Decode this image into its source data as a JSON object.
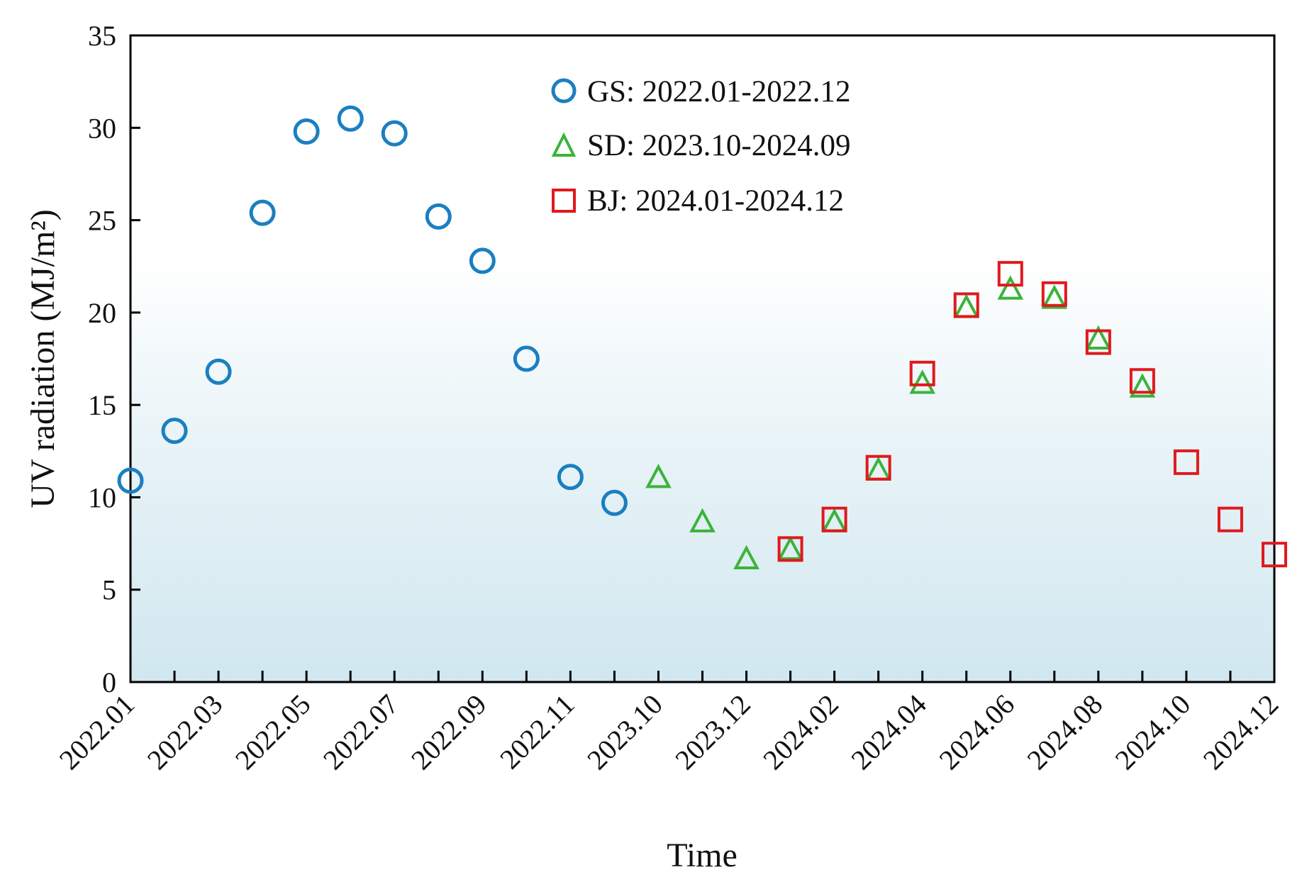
{
  "chart_data": {
    "type": "scatter",
    "title": "",
    "xlabel": "Time",
    "ylabel": "UV radiation (MJ/m²)",
    "ylim": [
      0,
      35
    ],
    "yticks": [
      0,
      5,
      10,
      15,
      20,
      25,
      30,
      35
    ],
    "categories": [
      "2022.01",
      "2022.02",
      "2022.03",
      "2022.04",
      "2022.05",
      "2022.06",
      "2022.07",
      "2022.08",
      "2022.09",
      "2022.10",
      "2022.11",
      "2022.12",
      "2023.10",
      "2023.11",
      "2023.12",
      "2024.01",
      "2024.02",
      "2024.03",
      "2024.04",
      "2024.05",
      "2024.06",
      "2024.07",
      "2024.08",
      "2024.09",
      "2024.10",
      "2024.11",
      "2024.12"
    ],
    "tick_labels": [
      "2022.01",
      "2022.03",
      "2022.05",
      "2022.07",
      "2022.09",
      "2022.11",
      "2023.10",
      "2023.12",
      "2024.02",
      "2024.04",
      "2024.06",
      "2024.08",
      "2024.10",
      "2024.12"
    ],
    "legend_position": "top-center",
    "series": [
      {
        "name": "GS",
        "period": "2022.01-2022.12",
        "marker": "circle",
        "color": "#1a7fc1",
        "start_index": 0,
        "values": [
          10.9,
          13.6,
          16.8,
          25.4,
          29.8,
          30.5,
          29.7,
          25.2,
          22.8,
          17.5,
          11.1,
          9.7
        ]
      },
      {
        "name": "SD",
        "period": "2023.10-2024.09",
        "marker": "triangle",
        "color": "#3cb33a",
        "start_index": 12,
        "values": [
          11.0,
          8.6,
          6.6,
          7.1,
          8.6,
          11.4,
          16.1,
          20.2,
          21.2,
          20.7,
          18.5,
          15.9
        ]
      },
      {
        "name": "BJ",
        "period": "2024.01-2024.12",
        "marker": "square",
        "color": "#e0191c",
        "start_index": 15,
        "values": [
          7.2,
          8.8,
          11.6,
          16.7,
          20.4,
          22.1,
          21.0,
          18.4,
          16.3,
          11.9,
          8.8,
          6.9
        ]
      }
    ]
  }
}
